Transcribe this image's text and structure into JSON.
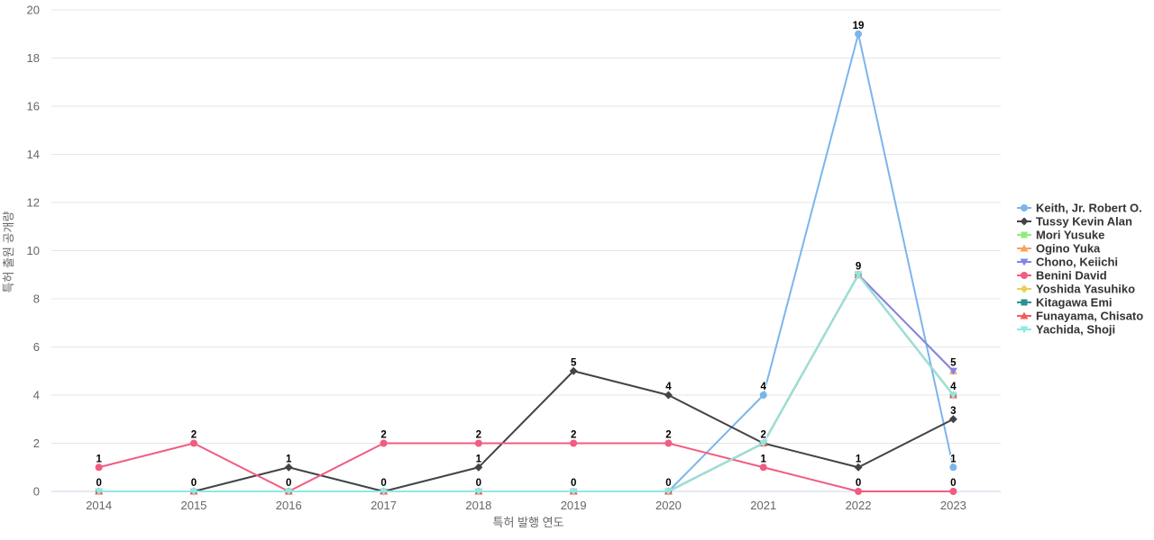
{
  "chart_data": {
    "type": "line",
    "title": "",
    "xlabel": "특허 발행 연도",
    "ylabel": "특허 출원 공개량",
    "categories": [
      "2014",
      "2015",
      "2016",
      "2017",
      "2018",
      "2019",
      "2020",
      "2021",
      "2022",
      "2023"
    ],
    "ylim": [
      0,
      20
    ],
    "ytick_step": 2,
    "grid": true,
    "legend_position": "right",
    "colors": {
      "grid_line": "#e6e6e6",
      "axis_line": "#ccd6eb",
      "tick_label": "#666666",
      "axis_title": "#666666",
      "data_label": "#000000",
      "legend_text": "#333333",
      "background": "#ffffff"
    },
    "series": [
      {
        "name": "Keith, Jr. Robert O.",
        "color": "#7cb5ec",
        "marker": "circle",
        "values": [
          null,
          null,
          null,
          null,
          null,
          null,
          0,
          4,
          19,
          1
        ]
      },
      {
        "name": "Tussy Kevin Alan",
        "color": "#434348",
        "marker": "diamond",
        "values": [
          null,
          0,
          1,
          0,
          1,
          5,
          4,
          2,
          1,
          3
        ]
      },
      {
        "name": "Mori Yusuke",
        "color": "#90ed7d",
        "marker": "square",
        "values": [
          0,
          0,
          0,
          0,
          0,
          0,
          0,
          2,
          9,
          4
        ]
      },
      {
        "name": "Ogino Yuka",
        "color": "#f7a35c",
        "marker": "triangle",
        "values": [
          0,
          0,
          0,
          0,
          0,
          0,
          0,
          2,
          9,
          5
        ]
      },
      {
        "name": "Chono, Keiichi",
        "color": "#8085e9",
        "marker": "triangle-down",
        "values": [
          0,
          0,
          0,
          0,
          0,
          0,
          0,
          2,
          9,
          5
        ]
      },
      {
        "name": "Benini David",
        "color": "#f15c80",
        "marker": "circle",
        "values": [
          1,
          2,
          0,
          2,
          2,
          2,
          2,
          1,
          0,
          0
        ]
      },
      {
        "name": "Yoshida Yasuhiko",
        "color": "#e4d354",
        "marker": "diamond",
        "values": [
          0,
          0,
          0,
          0,
          0,
          0,
          0,
          2,
          9,
          4
        ]
      },
      {
        "name": "Kitagawa Emi",
        "color": "#2b908f",
        "marker": "square",
        "values": [
          0,
          0,
          0,
          0,
          0,
          0,
          0,
          2,
          9,
          4
        ]
      },
      {
        "name": "Funayama, Chisato",
        "color": "#f45b5b",
        "marker": "triangle",
        "values": [
          0,
          0,
          0,
          0,
          0,
          0,
          0,
          2,
          9,
          4
        ]
      },
      {
        "name": "Yachida, Shoji",
        "color": "#91e8e1",
        "marker": "triangle-down",
        "values": [
          0,
          0,
          0,
          0,
          0,
          0,
          0,
          2,
          9,
          4
        ]
      }
    ]
  }
}
